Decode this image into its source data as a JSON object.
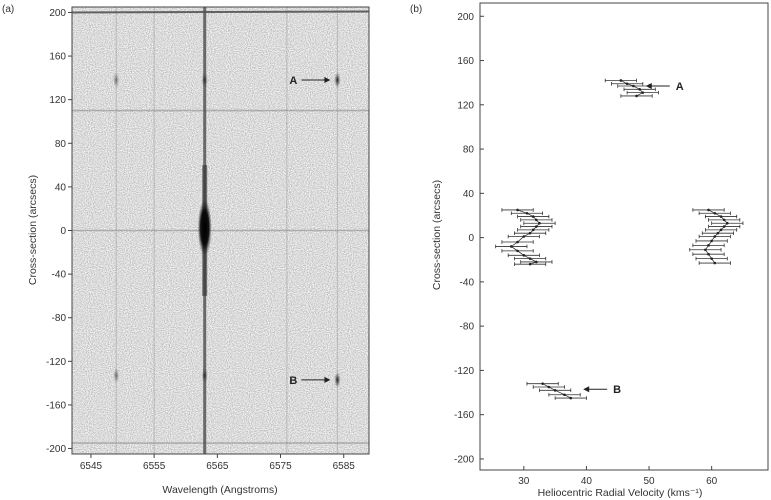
{
  "chart_data": [
    {
      "panel_label": "(a)",
      "type": "heatmap",
      "xlabel": "Wavelength (Angstroms)",
      "ylabel": "Cross-section (arcsecs)",
      "xlim": [
        6542,
        6589
      ],
      "ylim": [
        -205,
        205
      ],
      "xticks": [
        6545,
        6555,
        6565,
        6575,
        6585
      ],
      "yticks": [
        200,
        160,
        120,
        80,
        40,
        0,
        -40,
        -80,
        -120,
        -160,
        -200
      ],
      "grid": false,
      "color_scale": "grayscale, dark = strong emission",
      "annotations": [
        {
          "text": "A",
          "target_x": 6584,
          "target_y": 138
        },
        {
          "text": "B",
          "target_x": 6584,
          "target_y": -137
        }
      ],
      "features": {
        "continuum_rows_arcsec": [
          200,
          110,
          0,
          -195
        ],
        "halpha_line_wavelength": 6563,
        "halpha_core_extent_arcsec": [
          -20,
          25
        ],
        "nii_6548_knots_arcsec": [
          138,
          -133
        ],
        "halpha_knots_arcsec": [
          138,
          -133
        ],
        "nii_6584_knots_arcsec": [
          138,
          -137
        ]
      }
    },
    {
      "panel_label": "(b)",
      "type": "scatter",
      "xlabel": "Heliocentric Radial Velocity (kms⁻¹)",
      "ylabel": "Cross-section (arcsecs)",
      "xlim": [
        23,
        69
      ],
      "ylim": [
        -210,
        212
      ],
      "xticks": [
        30,
        40,
        50,
        60
      ],
      "yticks": [
        200,
        160,
        120,
        80,
        40,
        0,
        -40,
        -80,
        -120,
        -160,
        -200
      ],
      "grid": false,
      "error_bars": "horizontal",
      "annotations": [
        {
          "text": "A",
          "target_x": 49,
          "target_y": 137
        },
        {
          "text": "B",
          "target_x": 39,
          "target_y": -137
        }
      ],
      "series": [
        {
          "x": [
            45.5,
            46.5,
            47.5,
            48.5,
            49,
            48
          ],
          "y": [
            142,
            139,
            137,
            134,
            131,
            128
          ],
          "xerr": [
            2.5,
            2.5,
            2.5,
            2.5,
            2.5,
            2.5
          ]
        },
        {
          "x": [
            29,
            30.5,
            31.5,
            32,
            32.5,
            32,
            31.5,
            31,
            30,
            29,
            28,
            29,
            30,
            31,
            32,
            31
          ],
          "y": [
            25,
            22,
            19,
            16,
            13,
            10,
            7,
            4,
            1,
            -4,
            -8,
            -12,
            -16,
            -19,
            -22,
            -24
          ],
          "xerr": [
            2.5,
            2.5,
            2.5,
            2.5,
            2.5,
            2.5,
            2.5,
            2.5,
            2.5,
            2.5,
            2.5,
            2.5,
            2.5,
            2.5,
            2.5,
            2.5
          ]
        },
        {
          "x": [
            59.5,
            60.5,
            61.5,
            62,
            62.5,
            62,
            61.5,
            61,
            60.5,
            60,
            59.5,
            59,
            59.5,
            60,
            60.5
          ],
          "y": [
            25,
            22,
            19,
            16,
            13,
            10,
            7,
            4,
            1,
            -3,
            -7,
            -11,
            -15,
            -19,
            -23
          ],
          "xerr": [
            2.5,
            2.5,
            2.5,
            2.5,
            2.5,
            2.5,
            2.5,
            2.5,
            2.5,
            2.5,
            2.5,
            2.5,
            2.5,
            2.5,
            2.5
          ]
        },
        {
          "x": [
            33,
            34,
            35,
            36.5,
            37.5
          ],
          "y": [
            -132,
            -135,
            -138,
            -142,
            -145
          ],
          "xerr": [
            2.5,
            2.5,
            2.5,
            2.5,
            2.5
          ]
        }
      ]
    }
  ]
}
